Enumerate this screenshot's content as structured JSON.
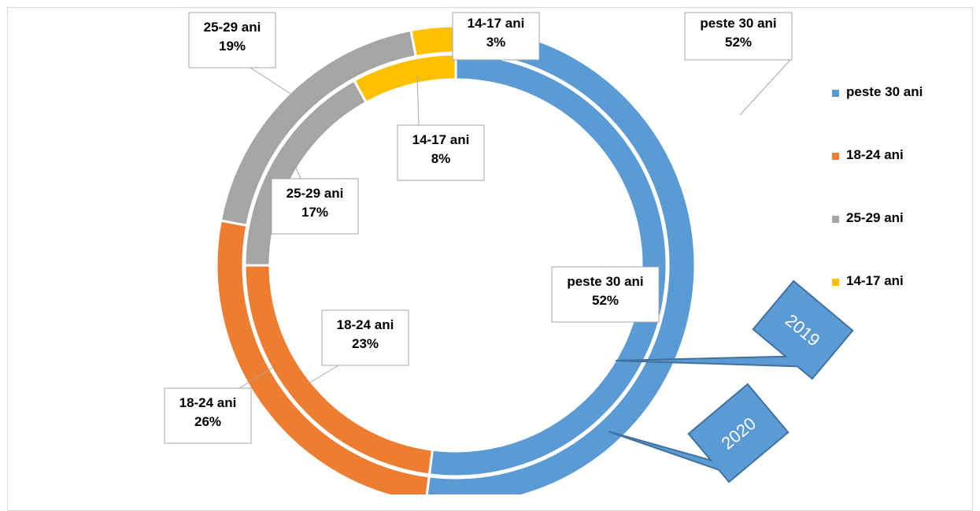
{
  "chart_data": {
    "type": "doughnut",
    "categories": [
      "peste 30 ani",
      "18-24 ani",
      "25-29 ani",
      "14-17 ani"
    ],
    "colors": {
      "peste 30 ani": "#5b9bd5",
      "18-24 ani": "#ed7d31",
      "25-29 ani": "#a5a5a5",
      "14-17 ani": "#ffc000"
    },
    "series": [
      {
        "name": "2019",
        "ring": "inner",
        "values": [
          52,
          23,
          17,
          8
        ],
        "labels": [
          "peste 30 ani\n52%",
          "18-24 ani\n23%",
          "25-29 ani\n17%",
          "14-17 ani\n8%"
        ]
      },
      {
        "name": "2020",
        "ring": "outer",
        "values": [
          52,
          26,
          19,
          3
        ],
        "labels": [
          "peste 30 ani\n52%",
          "18-24 ani\n26%",
          "25-29 ani\n19%",
          "14-17 ani\n3%"
        ]
      }
    ],
    "legend": {
      "position": "right",
      "items": [
        "peste 30 ani",
        "18-24 ani",
        "25-29 ani",
        "14-17 ani"
      ]
    },
    "annotations": [
      "2019",
      "2020"
    ]
  }
}
